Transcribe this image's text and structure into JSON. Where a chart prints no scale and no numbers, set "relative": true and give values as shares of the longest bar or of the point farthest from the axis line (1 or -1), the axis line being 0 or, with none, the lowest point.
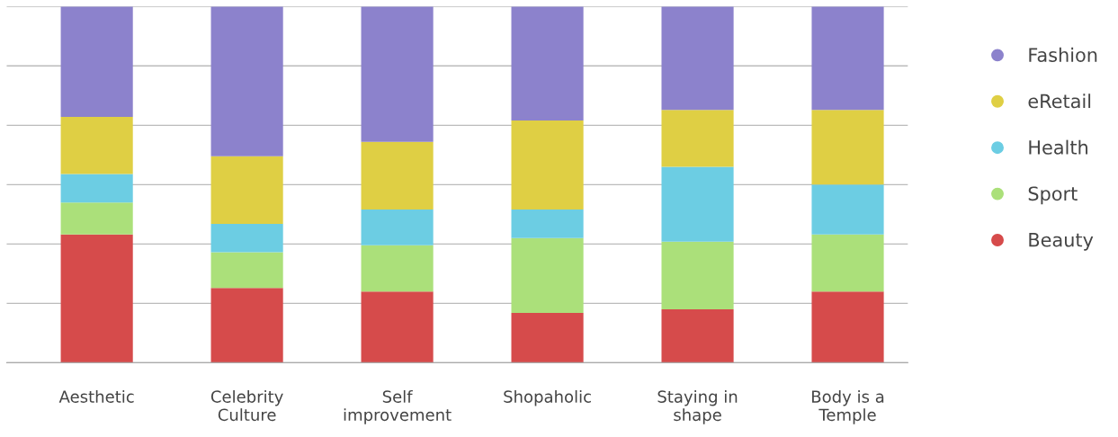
{
  "chart_data": {
    "type": "bar",
    "stacked": true,
    "relative": true,
    "grid": "y",
    "legend": "right",
    "tick_labels": "x",
    "categories": [
      "Aesthetic",
      "Celebrity\nCulture",
      "Self\nimprovement",
      "Shopaholic",
      "Staying in\nshape",
      "Body is a\nTemple"
    ],
    "series": [
      {
        "name": "Beauty",
        "color": "#d64b4b",
        "values": [
          0.36,
          0.21,
          0.2,
          0.14,
          0.15,
          0.2
        ]
      },
      {
        "name": "Sport",
        "color": "#abe07a",
        "values": [
          0.09,
          0.1,
          0.13,
          0.21,
          0.19,
          0.16
        ]
      },
      {
        "name": "Health",
        "color": "#6ccde3",
        "values": [
          0.08,
          0.08,
          0.1,
          0.08,
          0.21,
          0.14
        ]
      },
      {
        "name": "eRetail",
        "color": "#dfcf44",
        "values": [
          0.16,
          0.19,
          0.19,
          0.25,
          0.16,
          0.21
        ]
      },
      {
        "name": "Fashion",
        "color": "#8c82cc",
        "values": [
          0.31,
          0.42,
          0.38,
          0.32,
          0.29,
          0.29
        ]
      }
    ]
  }
}
